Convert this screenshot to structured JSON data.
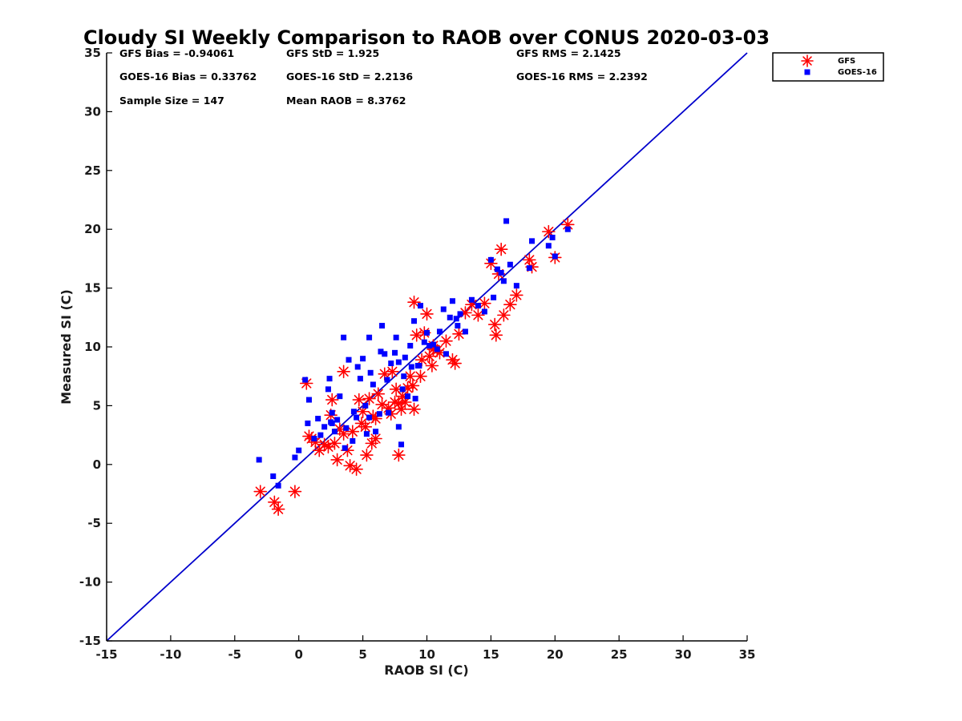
{
  "colors": {
    "gfs": "#ff0000",
    "goes": "#0000ff",
    "one_to_one_line": "#0000cc",
    "axis": "#000000"
  },
  "chart_data": {
    "type": "scatter",
    "title": "Cloudy SI Weekly Comparison to RAOB over CONUS 2020-03-03",
    "xlabel": "RAOB SI (C)",
    "ylabel": "Measured SI (C)",
    "xlim": [
      -15,
      35
    ],
    "ylim": [
      -15,
      35
    ],
    "xticks": [
      "-15",
      "-10",
      "-5",
      "0",
      "5",
      "10",
      "15",
      "20",
      "25",
      "30",
      "35"
    ],
    "yticks": [
      "-15",
      "-10",
      "-5",
      "0",
      "5",
      "10",
      "15",
      "20",
      "25",
      "30",
      "35"
    ],
    "grid": false,
    "legend_position": "outside top-right",
    "reference_line": {
      "type": "1:1",
      "from": [
        -15,
        -15
      ],
      "to": [
        35,
        35
      ]
    },
    "stats": [
      "GFS Bias = -0.94061",
      "GFS StD = 1.925",
      "GFS RMS = 2.1425",
      "GOES-16 Bias = 0.33762",
      "GOES-16 StD = 2.2136",
      "GOES-16 RMS = 2.2392",
      "Sample Size = 147",
      "Mean RAOB = 8.3762"
    ],
    "series": [
      {
        "name": "GFS",
        "marker": "asterisk",
        "x": [
          -3.0,
          -1.9,
          -1.6,
          -0.3,
          0.6,
          0.8,
          1.0,
          1.3,
          1.6,
          2.0,
          2.3,
          2.5,
          2.6,
          2.8,
          3.0,
          3.2,
          3.5,
          3.8,
          4.0,
          4.2,
          4.5,
          4.7,
          4.9,
          5.0,
          5.2,
          5.3,
          5.5,
          5.7,
          5.8,
          6.0,
          6.2,
          6.5,
          6.7,
          7.0,
          7.2,
          7.3,
          7.5,
          7.6,
          7.8,
          8.0,
          8.1,
          8.3,
          8.5,
          8.7,
          8.9,
          9.0,
          9.2,
          9.5,
          9.6,
          9.8,
          10.0,
          10.2,
          10.4,
          10.5,
          10.8,
          11.0,
          11.5,
          12.0,
          12.2,
          12.5,
          13.0,
          13.5,
          14.0,
          14.5,
          15.0,
          15.3,
          15.4,
          15.6,
          15.8,
          16.0,
          16.5,
          17.0,
          18.0,
          18.2,
          19.5,
          20.0,
          21.0,
          3.5,
          6.0,
          7.8,
          9.0,
          10.5
        ],
        "y": [
          -2.3,
          -3.2,
          -3.8,
          -2.3,
          6.9,
          2.4,
          2.2,
          1.9,
          1.2,
          1.7,
          1.5,
          4.2,
          5.5,
          1.8,
          0.4,
          3.0,
          7.9,
          1.2,
          -0.1,
          2.8,
          -0.4,
          5.5,
          3.5,
          4.5,
          3.2,
          0.8,
          5.6,
          1.8,
          4.1,
          2.2,
          6.0,
          5.1,
          7.7,
          4.8,
          4.3,
          7.9,
          5.3,
          6.4,
          5.2,
          4.7,
          5.8,
          5.3,
          6.5,
          7.5,
          6.7,
          4.7,
          11.0,
          7.5,
          8.9,
          11.2,
          12.8,
          9.2,
          8.4,
          10.1,
          9.7,
          9.5,
          10.5,
          8.9,
          8.6,
          11.1,
          12.9,
          13.6,
          12.7,
          13.7,
          17.1,
          11.9,
          11.0,
          16.2,
          18.3,
          12.7,
          13.6,
          14.4,
          17.4,
          16.8,
          19.8,
          17.6,
          20.4,
          2.6,
          3.9,
          0.8,
          13.8,
          9.8
        ]
      },
      {
        "name": "GOES-16",
        "marker": "square",
        "x": [
          -3.1,
          -2.0,
          -1.6,
          -0.3,
          0.0,
          0.5,
          0.7,
          0.8,
          1.2,
          1.5,
          1.7,
          2.0,
          2.3,
          2.4,
          2.5,
          2.6,
          2.8,
          3.0,
          3.2,
          3.5,
          3.7,
          3.9,
          4.2,
          4.5,
          4.6,
          4.8,
          5.0,
          5.2,
          5.3,
          5.5,
          5.6,
          5.8,
          6.0,
          6.3,
          6.5,
          6.7,
          6.9,
          7.0,
          7.2,
          7.5,
          7.6,
          7.8,
          8.0,
          8.1,
          8.3,
          8.5,
          8.7,
          8.8,
          9.0,
          9.1,
          9.3,
          9.5,
          9.8,
          10.0,
          10.2,
          10.5,
          10.8,
          11.0,
          11.3,
          11.5,
          11.8,
          12.0,
          12.3,
          12.6,
          13.0,
          13.5,
          14.0,
          14.5,
          15.0,
          15.2,
          15.5,
          15.8,
          16.0,
          16.2,
          16.5,
          17.0,
          18.0,
          18.2,
          19.5,
          19.8,
          20.0,
          21.0,
          3.6,
          5.5,
          7.8,
          9.4,
          12.4,
          6.4,
          4.3,
          2.6,
          8.2
        ],
        "y": [
          0.4,
          -1.0,
          -1.8,
          0.6,
          1.2,
          7.2,
          3.5,
          5.5,
          2.2,
          3.9,
          2.5,
          3.2,
          6.4,
          7.3,
          3.6,
          4.4,
          2.8,
          3.8,
          5.8,
          10.8,
          3.1,
          8.9,
          2.0,
          4.0,
          8.3,
          7.3,
          9.0,
          5.0,
          2.6,
          10.8,
          7.8,
          6.8,
          2.8,
          4.3,
          11.8,
          9.4,
          7.2,
          4.4,
          8.6,
          9.5,
          10.8,
          8.7,
          1.7,
          6.4,
          9.1,
          5.8,
          10.1,
          8.3,
          12.2,
          5.6,
          8.4,
          13.5,
          10.4,
          11.2,
          10.1,
          10.2,
          9.8,
          11.3,
          13.2,
          9.4,
          12.5,
          13.9,
          12.4,
          12.8,
          11.3,
          14.0,
          13.5,
          13.0,
          17.4,
          14.2,
          16.6,
          16.3,
          15.6,
          20.7,
          17.0,
          15.2,
          16.7,
          19.0,
          18.6,
          19.3,
          17.7,
          20.0,
          1.4,
          4.0,
          3.2,
          8.4,
          11.8,
          9.6,
          4.5,
          3.5,
          7.5
        ]
      }
    ]
  }
}
